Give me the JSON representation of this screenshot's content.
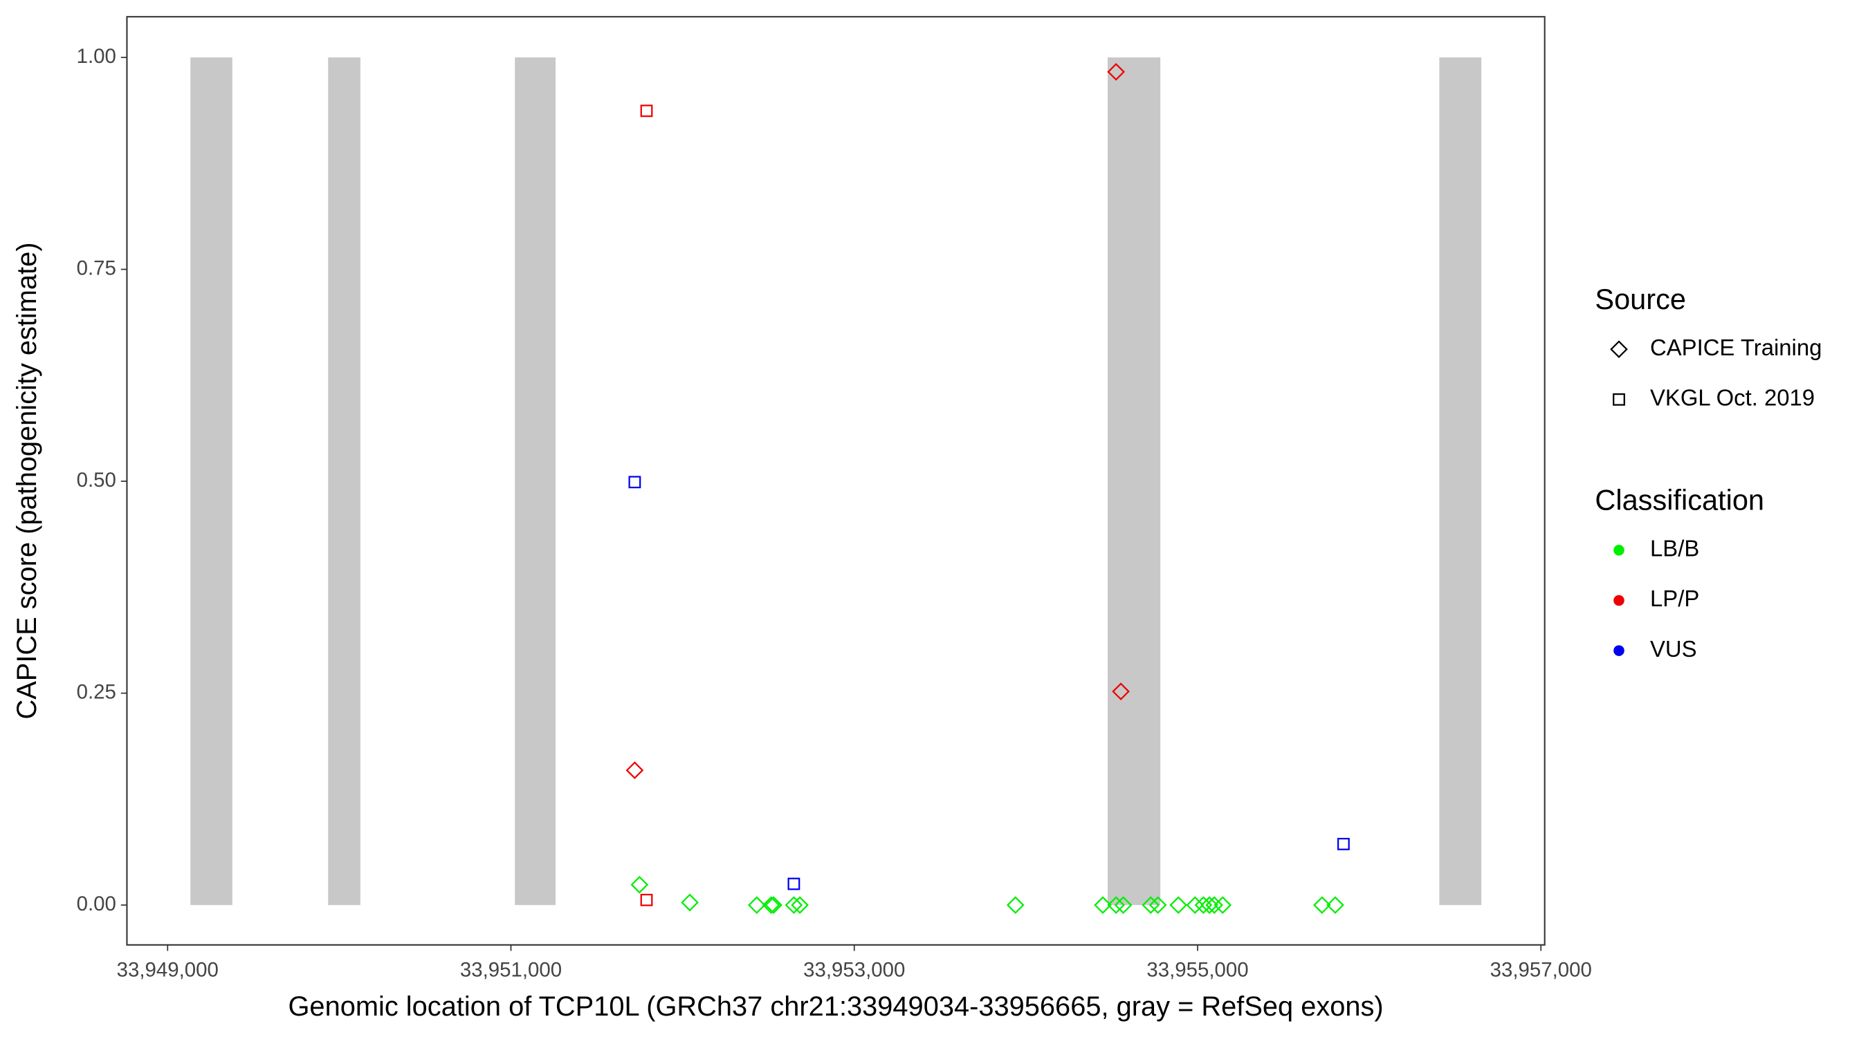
{
  "chart_data": {
    "type": "scatter",
    "xlabel": "Genomic location of TCP10L (GRCh37 chr21:33949034-33956665, gray = RefSeq exons)",
    "ylabel": "CAPICE score (pathogenicity estimate)",
    "xlim": [
      33948763,
      33957022
    ],
    "ylim": [
      -0.047,
      1.048
    ],
    "xticks": [
      {
        "value": 33949000,
        "label": "33,949,000"
      },
      {
        "value": 33951000,
        "label": "33,951,000"
      },
      {
        "value": 33953000,
        "label": "33,953,000"
      },
      {
        "value": 33955000,
        "label": "33,955,000"
      },
      {
        "value": 33957000,
        "label": "33,957,000"
      }
    ],
    "yticks": [
      {
        "value": 0,
        "label": "0.00"
      },
      {
        "value": 0.25,
        "label": "0.25"
      },
      {
        "value": 0.5,
        "label": "0.50"
      },
      {
        "value": 0.75,
        "label": "0.75"
      },
      {
        "value": 1,
        "label": "1.00"
      }
    ],
    "exons": {
      "color": "#c8c8c8",
      "start": [
        33949133,
        33949935,
        33951023,
        33954476,
        33956408
      ],
      "end": [
        33949377,
        33950123,
        33951260,
        33954783,
        33956653
      ]
    },
    "shape_legend": {
      "title": "Source",
      "items": [
        {
          "name": "CAPICE Training",
          "shape": "diamond"
        },
        {
          "name": "VKGL Oct. 2019",
          "shape": "square"
        }
      ]
    },
    "color_legend": {
      "title": "Classification",
      "items": [
        {
          "name": "LB/B",
          "color": "#00ee00"
        },
        {
          "name": "LP/P",
          "color": "#ee0000"
        },
        {
          "name": "VUS",
          "color": "#0000ee"
        }
      ]
    },
    "series": [
      {
        "shape": "diamond",
        "color": "#00ee00",
        "x": [
          33951749,
          33952042,
          33952432,
          33952516,
          33952530,
          33952648,
          33952683,
          33953939,
          33954448,
          33954525,
          33954567,
          33954727,
          33954769,
          33954888,
          33954985,
          33955034,
          33955069,
          33955097,
          33955146,
          33955725,
          33955802
        ],
        "values": [
          0.024,
          0.003,
          0,
          0,
          0,
          0,
          0,
          0,
          0,
          0,
          0,
          0,
          0,
          0,
          0,
          0,
          0,
          0,
          0,
          0,
          0
        ]
      },
      {
        "shape": "diamond",
        "color": "#ee0000",
        "x": [
          33954525,
          33954553,
          33951721
        ],
        "values": [
          0.983,
          0.252,
          0.159
        ]
      },
      {
        "shape": "square",
        "color": "#ee0000",
        "x": [
          33951790,
          33951790
        ],
        "values": [
          0.937,
          0.006
        ]
      },
      {
        "shape": "square",
        "color": "#0000ee",
        "x": [
          33951721,
          33952648,
          33955850
        ],
        "values": [
          0.499,
          0.025,
          0.072
        ]
      }
    ]
  }
}
